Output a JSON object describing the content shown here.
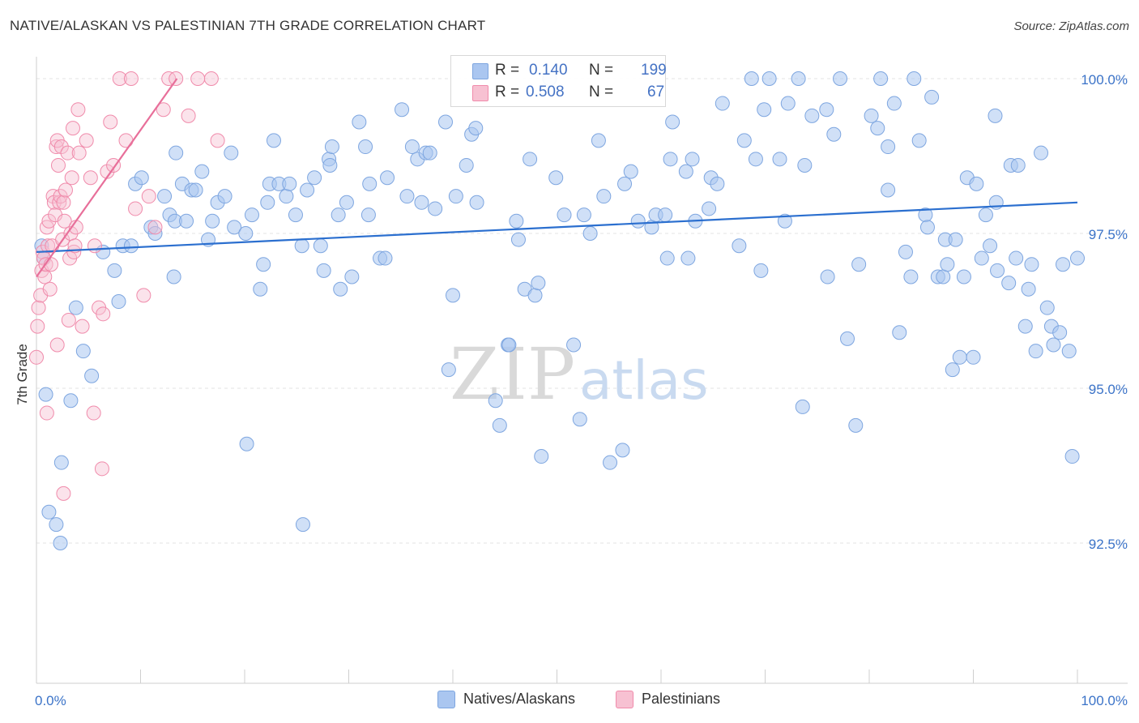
{
  "header": {
    "title": "NATIVE/ALASKAN VS PALESTINIAN 7TH GRADE CORRELATION CHART",
    "source": "Source: ZipAtlas.com"
  },
  "watermark": {
    "zip": "ZIP",
    "atlas": "atlas"
  },
  "stats_legend": {
    "r_label": "R =",
    "n_label": "N =",
    "rows": [
      {
        "series": "Natives/Alaskans",
        "r": "0.140",
        "n": "199",
        "color": "#aac6f0"
      },
      {
        "series": "Palestinians",
        "r": "0.508",
        "n": "67",
        "color": "#f5b8cb"
      }
    ]
  },
  "colors": {
    "natives_fill": "#aac6f0",
    "natives_stroke": "#7ea6e0",
    "natives_line": "#2b6fcf",
    "pal_fill": "#f7c1d2",
    "pal_stroke": "#f08bab",
    "pal_line": "#e86f9a",
    "axis_text": "#3b73c8",
    "grid": "#e3e3e3"
  },
  "chart_data": {
    "type": "scatter",
    "title": "NATIVE/ALASKAN VS PALESTINIAN 7TH GRADE CORRELATION CHART",
    "xlabel": "",
    "ylabel": "7th Grade",
    "xlim": [
      0,
      100
    ],
    "ylim": [
      90.0,
      100.2
    ],
    "x_tick_labels": [
      "0.0%",
      "100.0%"
    ],
    "y_ticks": [
      92.5,
      95.0,
      97.5,
      100.0
    ],
    "y_tick_labels": [
      "92.5%",
      "95.0%",
      "97.5%",
      "100.0%"
    ],
    "legend": [
      "Natives/Alaskans",
      "Palestinians"
    ],
    "series": [
      {
        "name": "Natives/Alaskans",
        "trend": {
          "x": [
            0,
            100
          ],
          "y": [
            97.2,
            98.0
          ]
        },
        "points": [
          [
            0.5,
            97.3
          ],
          [
            0.7,
            97.1
          ],
          [
            0.9,
            94.9
          ],
          [
            1.2,
            93.0
          ],
          [
            1.9,
            92.8
          ],
          [
            2.3,
            92.5
          ],
          [
            2.4,
            93.8
          ],
          [
            3.3,
            94.8
          ],
          [
            3.8,
            96.3
          ],
          [
            4.5,
            95.6
          ],
          [
            5.3,
            95.2
          ],
          [
            6.4,
            97.2
          ],
          [
            7.5,
            96.9
          ],
          [
            7.9,
            96.4
          ],
          [
            8.3,
            97.3
          ],
          [
            9.1,
            97.3
          ],
          [
            9.5,
            98.3
          ],
          [
            10.1,
            98.4
          ],
          [
            11.0,
            97.6
          ],
          [
            11.4,
            97.5
          ],
          [
            12.3,
            98.1
          ],
          [
            12.8,
            97.8
          ],
          [
            13.2,
            96.8
          ],
          [
            13.3,
            97.7
          ],
          [
            13.4,
            98.8
          ],
          [
            14.0,
            98.3
          ],
          [
            14.4,
            97.7
          ],
          [
            14.9,
            98.2
          ],
          [
            15.3,
            98.2
          ],
          [
            15.9,
            98.5
          ],
          [
            16.5,
            97.4
          ],
          [
            16.9,
            97.7
          ],
          [
            17.4,
            98.0
          ],
          [
            18.1,
            98.1
          ],
          [
            18.7,
            98.8
          ],
          [
            19.0,
            97.6
          ],
          [
            20.1,
            97.5
          ],
          [
            20.2,
            94.1
          ],
          [
            20.7,
            97.8
          ],
          [
            21.5,
            96.6
          ],
          [
            21.8,
            97.0
          ],
          [
            22.2,
            98.0
          ],
          [
            22.4,
            98.3
          ],
          [
            22.8,
            99.0
          ],
          [
            23.3,
            98.3
          ],
          [
            24.0,
            98.1
          ],
          [
            24.3,
            98.3
          ],
          [
            24.9,
            97.8
          ],
          [
            25.5,
            97.3
          ],
          [
            25.6,
            92.8
          ],
          [
            26.0,
            98.2
          ],
          [
            26.7,
            98.4
          ],
          [
            27.3,
            97.3
          ],
          [
            27.6,
            96.9
          ],
          [
            28.1,
            98.7
          ],
          [
            28.2,
            98.6
          ],
          [
            28.4,
            98.9
          ],
          [
            29.0,
            97.8
          ],
          [
            29.2,
            96.6
          ],
          [
            29.8,
            98.0
          ],
          [
            30.3,
            96.8
          ],
          [
            31.0,
            99.3
          ],
          [
            31.6,
            98.9
          ],
          [
            31.9,
            97.8
          ],
          [
            32.0,
            98.3
          ],
          [
            33.0,
            97.1
          ],
          [
            33.5,
            97.1
          ],
          [
            33.7,
            98.4
          ],
          [
            35.1,
            99.5
          ],
          [
            35.6,
            98.1
          ],
          [
            36.1,
            98.9
          ],
          [
            36.6,
            98.7
          ],
          [
            37.0,
            98.0
          ],
          [
            37.4,
            98.8
          ],
          [
            37.8,
            98.8
          ],
          [
            38.3,
            97.9
          ],
          [
            39.3,
            99.3
          ],
          [
            39.6,
            95.3
          ],
          [
            40.0,
            96.5
          ],
          [
            40.3,
            98.1
          ],
          [
            41.3,
            98.6
          ],
          [
            41.8,
            99.1
          ],
          [
            42.2,
            99.2
          ],
          [
            42.3,
            98.0
          ],
          [
            44.1,
            94.8
          ],
          [
            44.5,
            94.4
          ],
          [
            45.3,
            95.7
          ],
          [
            45.4,
            95.7
          ],
          [
            46.1,
            97.7
          ],
          [
            46.3,
            97.4
          ],
          [
            46.9,
            96.6
          ],
          [
            47.4,
            98.7
          ],
          [
            47.9,
            96.5
          ],
          [
            48.2,
            96.7
          ],
          [
            48.5,
            93.9
          ],
          [
            49.3,
            100.0
          ],
          [
            49.9,
            98.4
          ],
          [
            50.7,
            97.8
          ],
          [
            51.6,
            95.7
          ],
          [
            52.2,
            94.5
          ],
          [
            52.6,
            97.8
          ],
          [
            53.2,
            97.5
          ],
          [
            54.0,
            99.0
          ],
          [
            54.5,
            98.1
          ],
          [
            55.1,
            93.8
          ],
          [
            56.3,
            94.0
          ],
          [
            56.5,
            98.3
          ],
          [
            57.1,
            98.5
          ],
          [
            57.8,
            97.7
          ],
          [
            59.1,
            97.6
          ],
          [
            59.5,
            97.8
          ],
          [
            60.4,
            97.8
          ],
          [
            60.6,
            97.1
          ],
          [
            60.9,
            98.7
          ],
          [
            61.1,
            99.3
          ],
          [
            62.4,
            98.5
          ],
          [
            62.6,
            97.1
          ],
          [
            63.0,
            98.7
          ],
          [
            63.3,
            97.7
          ],
          [
            64.6,
            97.9
          ],
          [
            64.8,
            98.4
          ],
          [
            65.4,
            98.3
          ],
          [
            65.9,
            99.6
          ],
          [
            67.5,
            97.3
          ],
          [
            68.0,
            99.0
          ],
          [
            68.7,
            100.0
          ],
          [
            69.1,
            98.7
          ],
          [
            69.6,
            96.9
          ],
          [
            69.9,
            99.5
          ],
          [
            70.4,
            100.0
          ],
          [
            71.4,
            98.7
          ],
          [
            71.9,
            97.7
          ],
          [
            72.2,
            99.6
          ],
          [
            73.2,
            100.0
          ],
          [
            73.6,
            94.7
          ],
          [
            73.8,
            98.6
          ],
          [
            74.5,
            99.4
          ],
          [
            75.9,
            99.5
          ],
          [
            76.0,
            96.8
          ],
          [
            76.6,
            99.1
          ],
          [
            77.2,
            100.0
          ],
          [
            77.9,
            95.8
          ],
          [
            78.7,
            94.4
          ],
          [
            79.0,
            97.0
          ],
          [
            80.2,
            99.4
          ],
          [
            80.8,
            99.2
          ],
          [
            81.1,
            100.0
          ],
          [
            81.8,
            98.9
          ],
          [
            81.8,
            98.2
          ],
          [
            82.4,
            99.6
          ],
          [
            82.9,
            95.9
          ],
          [
            83.5,
            97.2
          ],
          [
            84.0,
            96.8
          ],
          [
            84.3,
            100.0
          ],
          [
            84.8,
            99.0
          ],
          [
            85.4,
            97.8
          ],
          [
            85.6,
            97.6
          ],
          [
            86.0,
            99.7
          ],
          [
            86.6,
            96.8
          ],
          [
            87.1,
            96.8
          ],
          [
            87.3,
            97.4
          ],
          [
            87.5,
            97.0
          ],
          [
            88.0,
            95.3
          ],
          [
            88.3,
            97.4
          ],
          [
            88.7,
            95.5
          ],
          [
            89.1,
            96.8
          ],
          [
            89.4,
            98.4
          ],
          [
            90.0,
            95.5
          ],
          [
            90.3,
            98.3
          ],
          [
            90.8,
            97.1
          ],
          [
            91.2,
            97.8
          ],
          [
            91.6,
            97.3
          ],
          [
            92.1,
            99.4
          ],
          [
            92.2,
            98.0
          ],
          [
            92.3,
            96.9
          ],
          [
            93.4,
            96.7
          ],
          [
            93.6,
            98.6
          ],
          [
            94.1,
            97.1
          ],
          [
            94.3,
            98.6
          ],
          [
            95.0,
            96.0
          ],
          [
            95.3,
            96.6
          ],
          [
            95.6,
            97.0
          ],
          [
            96.0,
            95.6
          ],
          [
            96.5,
            98.8
          ],
          [
            97.1,
            96.3
          ],
          [
            97.5,
            96.0
          ],
          [
            97.7,
            95.7
          ],
          [
            98.3,
            95.9
          ],
          [
            98.6,
            97.0
          ],
          [
            99.2,
            95.6
          ],
          [
            99.5,
            93.9
          ],
          [
            100.0,
            97.1
          ]
        ]
      },
      {
        "name": "Palestinians",
        "trend": {
          "x": [
            0,
            13.5
          ],
          "y": [
            96.8,
            100.0
          ]
        },
        "points": [
          [
            0.0,
            95.5
          ],
          [
            0.1,
            96.0
          ],
          [
            0.2,
            96.3
          ],
          [
            0.4,
            96.5
          ],
          [
            0.5,
            96.9
          ],
          [
            0.6,
            97.2
          ],
          [
            0.7,
            97.1
          ],
          [
            0.8,
            96.8
          ],
          [
            0.9,
            97.0
          ],
          [
            1.0,
            97.6
          ],
          [
            1.1,
            97.3
          ],
          [
            1.2,
            97.7
          ],
          [
            1.3,
            96.6
          ],
          [
            1.4,
            97.0
          ],
          [
            1.5,
            97.3
          ],
          [
            1.6,
            98.1
          ],
          [
            1.7,
            98.0
          ],
          [
            1.8,
            97.8
          ],
          [
            1.9,
            98.9
          ],
          [
            2.0,
            99.0
          ],
          [
            2.1,
            98.6
          ],
          [
            2.2,
            98.0
          ],
          [
            2.3,
            98.1
          ],
          [
            2.4,
            98.9
          ],
          [
            2.5,
            97.4
          ],
          [
            2.6,
            98.0
          ],
          [
            2.7,
            97.7
          ],
          [
            2.8,
            98.2
          ],
          [
            3.0,
            98.8
          ],
          [
            3.1,
            96.1
          ],
          [
            3.2,
            97.1
          ],
          [
            3.3,
            97.5
          ],
          [
            3.4,
            98.4
          ],
          [
            3.5,
            99.2
          ],
          [
            3.6,
            97.2
          ],
          [
            3.7,
            97.3
          ],
          [
            3.8,
            97.6
          ],
          [
            4.0,
            99.5
          ],
          [
            4.1,
            98.8
          ],
          [
            4.4,
            96.0
          ],
          [
            4.8,
            99.0
          ],
          [
            5.2,
            98.4
          ],
          [
            5.6,
            97.3
          ],
          [
            6.0,
            96.3
          ],
          [
            6.4,
            96.2
          ],
          [
            6.8,
            98.5
          ],
          [
            7.1,
            99.3
          ],
          [
            7.4,
            98.6
          ],
          [
            8.0,
            100.0
          ],
          [
            8.6,
            99.0
          ],
          [
            9.1,
            100.0
          ],
          [
            9.5,
            97.9
          ],
          [
            10.3,
            96.5
          ],
          [
            10.8,
            98.1
          ],
          [
            11.4,
            97.6
          ],
          [
            12.2,
            99.5
          ],
          [
            12.7,
            100.0
          ],
          [
            13.4,
            100.0
          ],
          [
            14.6,
            99.4
          ],
          [
            15.5,
            100.0
          ],
          [
            16.8,
            100.0
          ],
          [
            17.4,
            99.0
          ],
          [
            2.0,
            95.7
          ],
          [
            1.0,
            94.6
          ],
          [
            5.5,
            94.6
          ],
          [
            6.3,
            93.7
          ],
          [
            2.6,
            93.3
          ]
        ]
      }
    ]
  },
  "bottom_legend": {
    "items": [
      "Natives/Alaskans",
      "Palestinians"
    ]
  }
}
